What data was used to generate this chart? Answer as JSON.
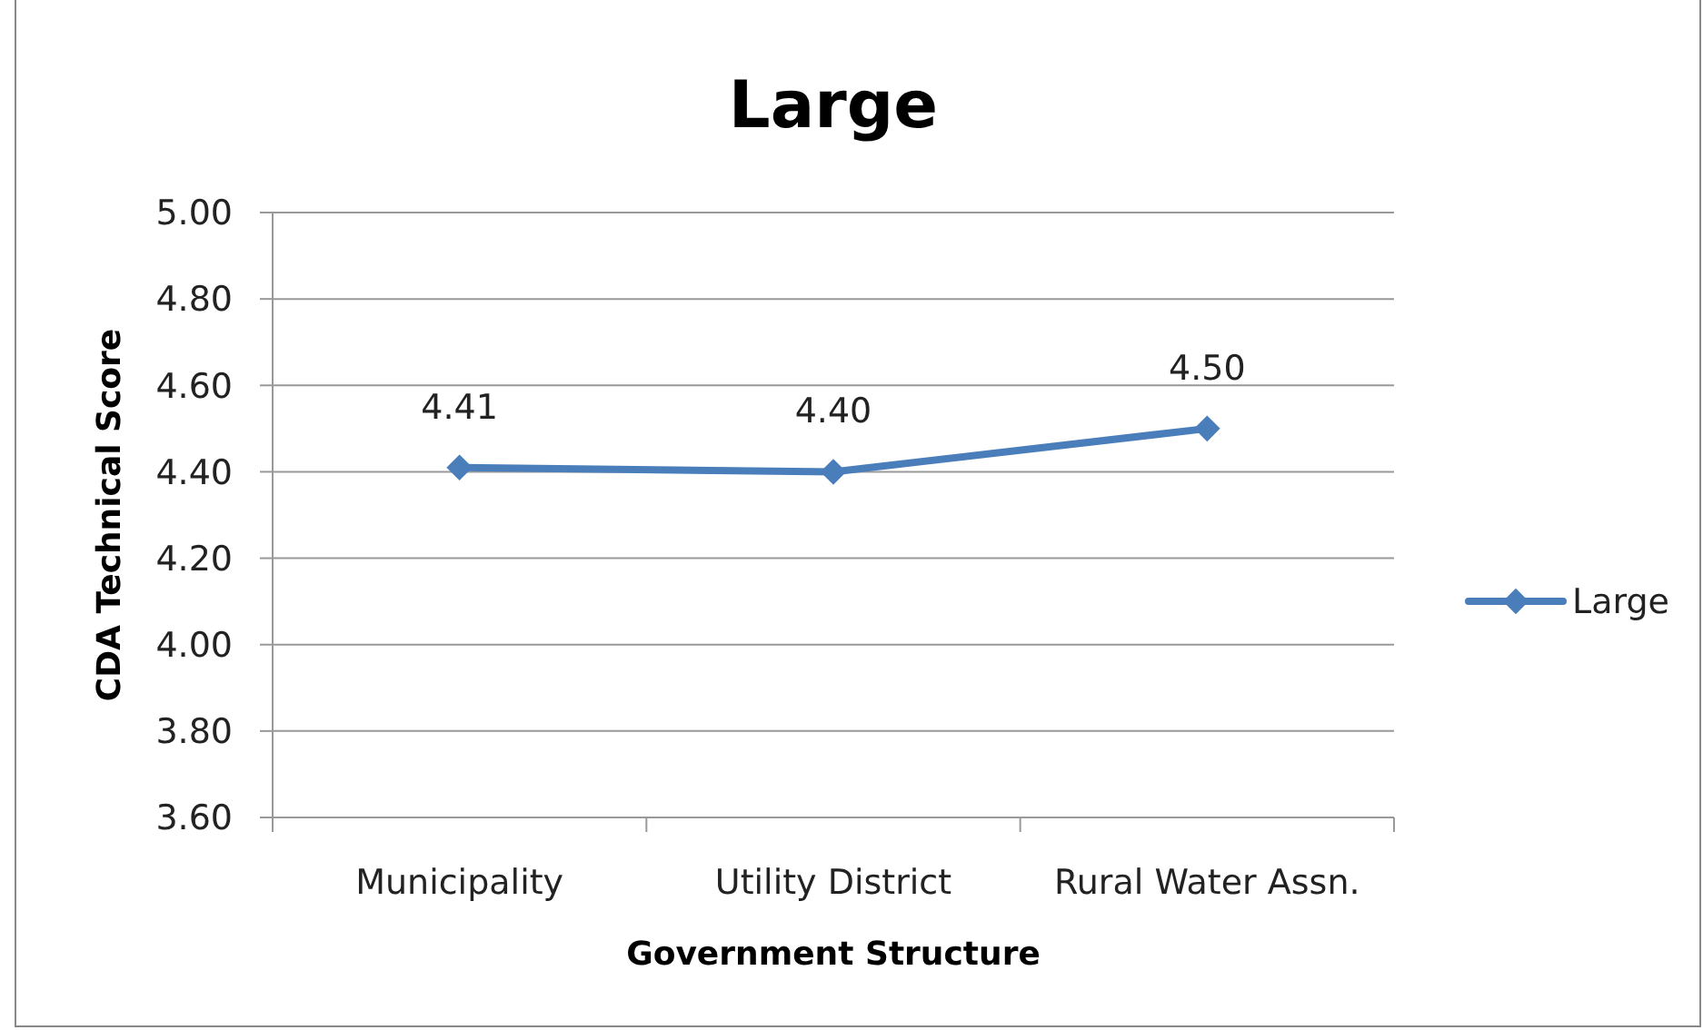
{
  "chart_data": {
    "type": "line",
    "title": "Large",
    "xlabel": "Government Structure",
    "ylabel": "CDA Technical Score",
    "categories": [
      "Municipality",
      "Utility District",
      "Rural Water Assn."
    ],
    "series": [
      {
        "name": "Large",
        "color": "#4a7ebb",
        "values": [
          4.41,
          4.4,
          4.5
        ]
      }
    ],
    "ylim": [
      3.6,
      5.0
    ],
    "yticks": [
      {
        "value": 3.6,
        "label": "3.60"
      },
      {
        "value": 3.8,
        "label": "3.80"
      },
      {
        "value": 4.0,
        "label": "4.00"
      },
      {
        "value": 4.2,
        "label": "4.20"
      },
      {
        "value": 4.4,
        "label": "4.40"
      },
      {
        "value": 4.6,
        "label": "4.60"
      },
      {
        "value": 4.8,
        "label": "4.80"
      },
      {
        "value": 5.0,
        "label": "5.00"
      }
    ],
    "grid": "y",
    "legend": "right",
    "marker": "diamond",
    "line_style": "solid",
    "value_labels": [
      "4.41",
      "4.40",
      "4.50"
    ]
  }
}
